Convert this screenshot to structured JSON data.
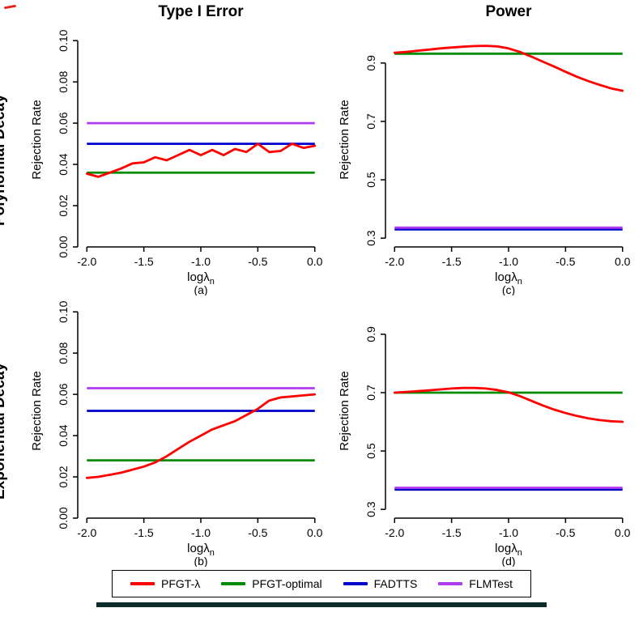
{
  "figure": {
    "col_titles": [
      "Type I Error",
      "Power"
    ],
    "row_titles": [
      "Polynomial Decay",
      "Exponential Decay"
    ],
    "bottom_bar_color": "#0d2b2b"
  },
  "legend": {
    "items": [
      {
        "label": "PFGT-λ",
        "color": "#FF0000"
      },
      {
        "label": "PFGT-optimal",
        "color": "#008B00"
      },
      {
        "label": "FADTTS",
        "color": "#0000CD"
      },
      {
        "label": "FLMTest",
        "color": "#B23AEE"
      }
    ]
  },
  "chart_data": [
    {
      "panel": "a",
      "type": "line",
      "row_title": "Polynomial Decay",
      "col_title": "Type I Error",
      "sublabel": "(a)",
      "xlabel_main": "logλ",
      "xlabel_sub": "n",
      "ylabel": "Rejection Rate",
      "xlim": [
        -2.08,
        0.08
      ],
      "ylim": [
        0,
        0.104
      ],
      "xticks": [
        -2.0,
        -1.5,
        -1.0,
        -0.5,
        0.0
      ],
      "xtick_labels": [
        "-2.0",
        "-1.5",
        "-1.0",
        "-0.5",
        "0.0"
      ],
      "yticks": [
        0.0,
        0.02,
        0.04,
        0.06,
        0.08,
        0.1
      ],
      "ytick_labels": [
        "0.00",
        "0.02",
        "0.04",
        "0.06",
        "0.08",
        "0.10"
      ],
      "x": [
        -2.0,
        -1.9,
        -1.8,
        -1.7,
        -1.6,
        -1.5,
        -1.4,
        -1.3,
        -1.2,
        -1.1,
        -1.0,
        -0.9,
        -0.8,
        -0.7,
        -0.6,
        -0.5,
        -0.4,
        -0.3,
        -0.2,
        -0.1,
        0.0
      ],
      "series": [
        {
          "name": "PFGT-optimal",
          "color": "#008B00",
          "y_const": 0.036
        },
        {
          "name": "FADTTS",
          "color": "#0000CD",
          "y_const": 0.05
        },
        {
          "name": "FLMTest",
          "color": "#B23AEE",
          "y_const": 0.06
        },
        {
          "name": "PFGT-λ",
          "color": "#FF0000",
          "y": [
            0.0355,
            0.034,
            0.036,
            0.038,
            0.0405,
            0.041,
            0.0435,
            0.042,
            0.0445,
            0.047,
            0.0445,
            0.047,
            0.0445,
            0.0475,
            0.046,
            0.05,
            0.046,
            0.0465,
            0.05,
            0.048,
            0.049
          ]
        }
      ]
    },
    {
      "panel": "c",
      "type": "line",
      "row_title": "Polynomial Decay",
      "col_title": "Power",
      "sublabel": "(c)",
      "xlabel_main": "logλ",
      "xlabel_sub": "n",
      "ylabel": "Rejection Rate",
      "xlim": [
        -2.08,
        0.08
      ],
      "ylim": [
        0.27,
        1.005
      ],
      "xticks": [
        -2.0,
        -1.5,
        -1.0,
        -0.5,
        0.0
      ],
      "xtick_labels": [
        "-2.0",
        "-1.5",
        "-1.0",
        "-0.5",
        "0.0"
      ],
      "yticks": [
        0.3,
        0.5,
        0.7,
        0.9
      ],
      "ytick_labels": [
        "0.3",
        "0.5",
        "0.7",
        "0.9"
      ],
      "x": [
        -2.0,
        -1.9,
        -1.8,
        -1.7,
        -1.6,
        -1.5,
        -1.4,
        -1.3,
        -1.2,
        -1.1,
        -1.0,
        -0.9,
        -0.8,
        -0.7,
        -0.6,
        -0.5,
        -0.4,
        -0.3,
        -0.2,
        -0.1,
        0.0
      ],
      "series": [
        {
          "name": "PFGT-optimal",
          "color": "#008B00",
          "y_const": 0.932
        },
        {
          "name": "FADTTS",
          "color": "#0000CD",
          "y_const": 0.33
        },
        {
          "name": "FLMTest",
          "color": "#B23AEE",
          "y_const": 0.336
        },
        {
          "name": "PFGT-λ",
          "color": "#FF0000",
          "y": [
            0.935,
            0.938,
            0.942,
            0.946,
            0.95,
            0.953,
            0.956,
            0.958,
            0.959,
            0.957,
            0.95,
            0.938,
            0.922,
            0.905,
            0.888,
            0.87,
            0.853,
            0.838,
            0.825,
            0.813,
            0.805
          ]
        }
      ]
    },
    {
      "panel": "b",
      "type": "line",
      "row_title": "Exponential Decay",
      "col_title": "Type I Error",
      "sublabel": "(b)",
      "xlabel_main": "logλ",
      "xlabel_sub": "n",
      "ylabel": "Rejection Rate",
      "xlim": [
        -2.08,
        0.08
      ],
      "ylim": [
        0,
        0.104
      ],
      "xticks": [
        -2.0,
        -1.5,
        -1.0,
        -0.5,
        0.0
      ],
      "xtick_labels": [
        "-2.0",
        "-1.5",
        "-1.0",
        "-0.5",
        "0.0"
      ],
      "yticks": [
        0.0,
        0.02,
        0.04,
        0.06,
        0.08,
        0.1
      ],
      "ytick_labels": [
        "0.00",
        "0.02",
        "0.04",
        "0.06",
        "0.08",
        "0.10"
      ],
      "x": [
        -2.0,
        -1.9,
        -1.8,
        -1.7,
        -1.6,
        -1.5,
        -1.4,
        -1.3,
        -1.2,
        -1.1,
        -1.0,
        -0.9,
        -0.8,
        -0.7,
        -0.6,
        -0.5,
        -0.4,
        -0.3,
        -0.2,
        -0.1,
        0.0
      ],
      "series": [
        {
          "name": "PFGT-optimal",
          "color": "#008B00",
          "y_const": 0.028
        },
        {
          "name": "FADTTS",
          "color": "#0000CD",
          "y_const": 0.052
        },
        {
          "name": "FLMTest",
          "color": "#B23AEE",
          "y_const": 0.063
        },
        {
          "name": "PFGT-λ",
          "color": "#FF0000",
          "y": [
            0.0195,
            0.02,
            0.021,
            0.022,
            0.0235,
            0.025,
            0.027,
            0.03,
            0.0335,
            0.037,
            0.04,
            0.043,
            0.045,
            0.047,
            0.05,
            0.053,
            0.057,
            0.0585,
            0.059,
            0.0595,
            0.06
          ]
        }
      ]
    },
    {
      "panel": "d",
      "type": "line",
      "row_title": "Exponential Decay",
      "col_title": "Power",
      "sublabel": "(d)",
      "xlabel_main": "logλ",
      "xlabel_sub": "n",
      "ylabel": "Rejection Rate",
      "xlim": [
        -2.08,
        0.08
      ],
      "ylim": [
        0.27,
        1.005
      ],
      "xticks": [
        -2.0,
        -1.5,
        -1.0,
        -0.5,
        0.0
      ],
      "xtick_labels": [
        "-2.0",
        "-1.5",
        "-1.0",
        "-0.5",
        "0.0"
      ],
      "yticks": [
        0.3,
        0.5,
        0.7,
        0.9
      ],
      "ytick_labels": [
        "0.3",
        "0.5",
        "0.7",
        "0.9"
      ],
      "x": [
        -2.0,
        -1.9,
        -1.8,
        -1.7,
        -1.6,
        -1.5,
        -1.4,
        -1.3,
        -1.2,
        -1.1,
        -1.0,
        -0.9,
        -0.8,
        -0.7,
        -0.6,
        -0.5,
        -0.4,
        -0.3,
        -0.2,
        -0.1,
        0.0
      ],
      "series": [
        {
          "name": "PFGT-optimal",
          "color": "#008B00",
          "y_const": 0.7
        },
        {
          "name": "FADTTS",
          "color": "#0000CD",
          "y_const": 0.368
        },
        {
          "name": "FLMTest",
          "color": "#B23AEE",
          "y_const": 0.374
        },
        {
          "name": "PFGT-λ",
          "color": "#FF0000",
          "y": [
            0.7,
            0.702,
            0.705,
            0.708,
            0.711,
            0.714,
            0.716,
            0.716,
            0.714,
            0.709,
            0.701,
            0.688,
            0.672,
            0.656,
            0.642,
            0.63,
            0.62,
            0.612,
            0.606,
            0.602,
            0.6
          ]
        }
      ]
    }
  ]
}
